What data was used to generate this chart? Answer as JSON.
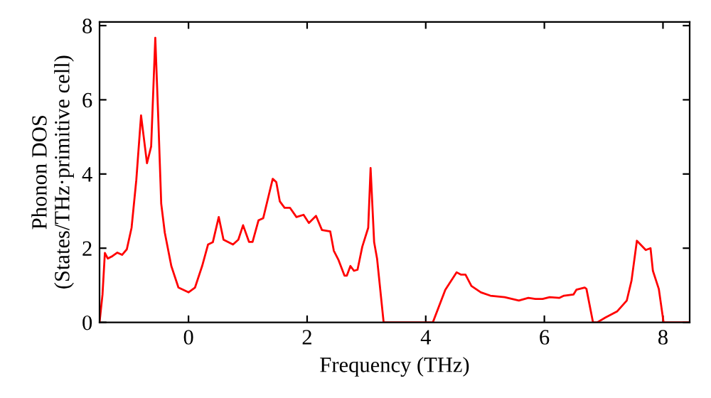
{
  "chart_data": {
    "type": "line",
    "xlabel": "Frequency (THz)",
    "ylabel": "Phonon DOS\n(States/THz·primitive cell)",
    "xlim": [
      -1.5,
      8.45
    ],
    "ylim": [
      0,
      8.1
    ],
    "xticks": [
      0,
      2,
      4,
      6,
      8
    ],
    "yticks": [
      0,
      2,
      4,
      6,
      8
    ],
    "grid": false,
    "marker": "none",
    "line_style": "solid",
    "series": [
      {
        "color": "#ff0000",
        "x": [
          -1.5,
          -1.45,
          -1.41,
          -1.36,
          -1.28,
          -1.2,
          -1.12,
          -1.04,
          -0.96,
          -0.88,
          -0.8,
          -0.7,
          -0.63,
          -0.56,
          -0.51,
          -0.46,
          -0.4,
          -0.29,
          -0.17,
          0,
          0.11,
          0.23,
          0.33,
          0.41,
          0.51,
          0.59,
          0.75,
          0.84,
          0.92,
          1.02,
          1.08,
          1.18,
          1.26,
          1.42,
          1.48,
          1.54,
          1.62,
          1.71,
          1.82,
          1.94,
          2.03,
          2.15,
          2.25,
          2.39,
          2.45,
          2.53,
          2.63,
          2.67,
          2.73,
          2.79,
          2.85,
          2.93,
          3.03,
          3.07,
          3.13,
          3.18,
          3.29,
          4.12,
          4.33,
          4.52,
          4.59,
          4.67,
          4.77,
          4.93,
          5.09,
          5.33,
          5.57,
          5.73,
          5.85,
          5.97,
          6.09,
          6.25,
          6.33,
          6.49,
          6.54,
          6.68,
          6.71,
          6.82,
          6.89,
          7.03,
          7.23,
          7.39,
          7.47,
          7.56,
          7.71,
          7.79,
          7.83,
          7.93,
          8.01,
          8.45
        ],
        "values": [
          0.0,
          0.75,
          1.87,
          1.72,
          1.79,
          1.88,
          1.82,
          1.97,
          2.55,
          3.84,
          5.58,
          4.29,
          4.74,
          7.67,
          5.52,
          3.2,
          2.42,
          1.52,
          0.94,
          0.81,
          0.94,
          1.52,
          2.1,
          2.16,
          2.84,
          2.23,
          2.1,
          2.23,
          2.62,
          2.17,
          2.17,
          2.75,
          2.81,
          3.87,
          3.78,
          3.26,
          3.09,
          3.09,
          2.84,
          2.9,
          2.68,
          2.87,
          2.49,
          2.45,
          1.93,
          1.68,
          1.26,
          1.26,
          1.52,
          1.39,
          1.42,
          2.04,
          2.55,
          4.16,
          2.16,
          1.71,
          0,
          0,
          0.88,
          1.35,
          1.29,
          1.29,
          0.98,
          0.81,
          0.72,
          0.68,
          0.59,
          0.66,
          0.63,
          0.63,
          0.68,
          0.66,
          0.72,
          0.75,
          0.88,
          0.94,
          0.9,
          0,
          0,
          0.13,
          0.3,
          0.59,
          1.13,
          2.2,
          1.95,
          2.0,
          1.39,
          0.9,
          0,
          0
        ]
      }
    ]
  }
}
